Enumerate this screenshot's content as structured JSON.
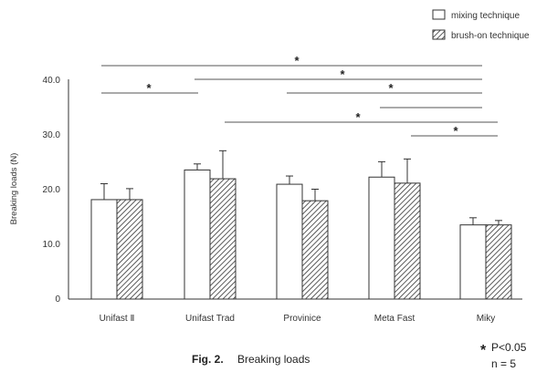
{
  "chart_data": {
    "type": "bar",
    "categories": [
      "Unifast Ⅱ",
      "Unifast Trad",
      "Provinice",
      "Meta Fast",
      "Miky"
    ],
    "series": [
      {
        "name": "mixing technique",
        "values": [
          18.1,
          23.5,
          20.9,
          22.2,
          13.5
        ],
        "errors": [
          2.9,
          1.1,
          1.5,
          2.8,
          1.3
        ]
      },
      {
        "name": "brush-on technique",
        "values": [
          18.1,
          21.9,
          17.9,
          21.1,
          13.5
        ],
        "errors": [
          2.0,
          5.1,
          2.1,
          4.4,
          0.8
        ]
      }
    ],
    "ylabel": "Breaking loads (N)",
    "xlabel": "",
    "ylim": [
      0,
      40
    ],
    "yticks": [
      "0",
      "10.0",
      "20.0",
      "30.0",
      "40.0"
    ],
    "grid": false,
    "legend_position": "top-right",
    "significance_symbol": "*",
    "significance": [
      {
        "from": "Unifast Ⅱ",
        "to": "Miky"
      },
      {
        "from": "Unifast Trad",
        "to": "Miky"
      },
      {
        "from": "Unifast Ⅱ",
        "to": "Unifast Trad"
      },
      {
        "from": "Provinice",
        "to": "Miky"
      },
      {
        "from": "Meta Fast",
        "to": "Miky"
      },
      {
        "from": "Unifast Trad",
        "to": "Miky"
      },
      {
        "from": "Meta Fast",
        "to": "Miky"
      }
    ]
  },
  "caption": {
    "figure": "Fig. 2.",
    "text": "Breaking loads"
  },
  "notes": {
    "p_value": "P<0.05",
    "n": "n = 5"
  },
  "colors": {
    "mixing": "#ffffff",
    "brush_hatch": "#333333",
    "axis": "#333333"
  }
}
